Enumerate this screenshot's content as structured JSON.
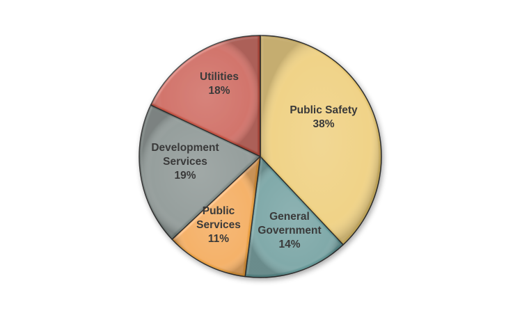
{
  "chart_data": {
    "type": "pie",
    "title": "",
    "legend": "none",
    "start_angle_deg": 0,
    "direction": "clockwise",
    "slices": [
      {
        "key": "public_safety",
        "label_lines": [
          "Public Safety",
          "38%"
        ],
        "value": 38,
        "color": "#e3c36a"
      },
      {
        "key": "general_government",
        "label_lines": [
          "General",
          "Government",
          "14%"
        ],
        "value": 14,
        "color": "#5f9595"
      },
      {
        "key": "public_services",
        "label_lines": [
          "Public",
          "Services",
          "11%"
        ],
        "value": 11,
        "color": "#e89d3a"
      },
      {
        "key": "development_services",
        "label_lines": [
          "Development",
          "Services",
          "19%"
        ],
        "value": 19,
        "color": "#7c8885"
      },
      {
        "key": "utilities",
        "label_lines": [
          "Utilities",
          "18%"
        ],
        "value": 18,
        "color": "#c24d3c"
      }
    ]
  }
}
